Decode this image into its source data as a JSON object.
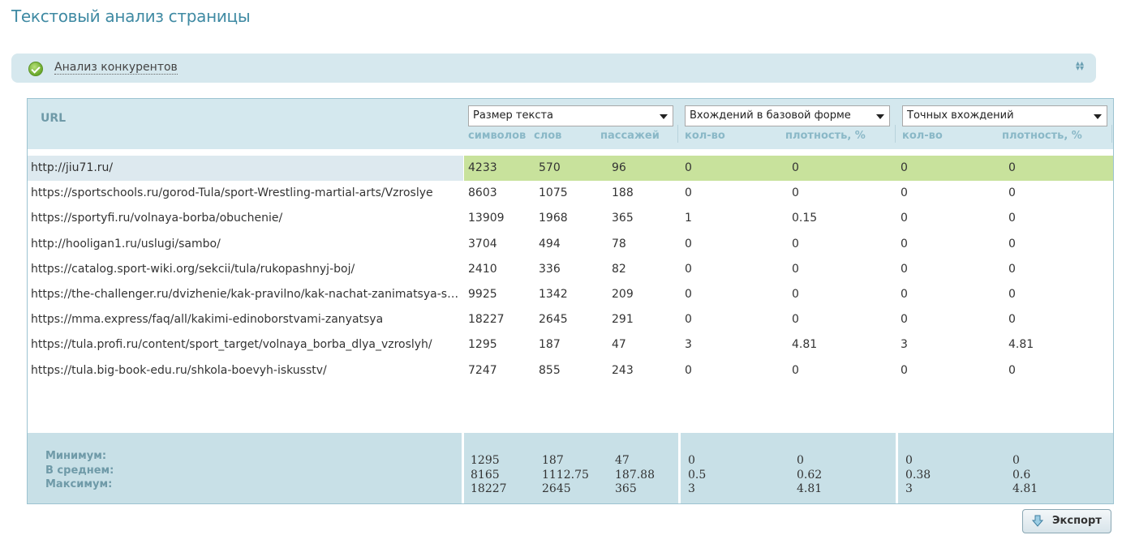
{
  "page": {
    "title": "Текстовый анализ страницы"
  },
  "panel": {
    "label": "Анализ конкурентов"
  },
  "table": {
    "url_header": "URL",
    "groups": [
      {
        "select": "Размер текста",
        "subs": [
          "символов",
          "слов",
          "пассажей"
        ]
      },
      {
        "select": "Вхождений в базовой форме",
        "subs": [
          "кол-во",
          "плотность, %"
        ]
      },
      {
        "select": "Точных вхождений",
        "subs": [
          "кол-во",
          "плотность, %"
        ]
      }
    ],
    "rows": [
      {
        "url": "http://jiu71.ru/",
        "v": [
          "4233",
          "570",
          "96",
          "0",
          "0",
          "0",
          "0"
        ]
      },
      {
        "url": "https://sportschools.ru/gorod-Tula/sport-Wrestling-martial-arts/Vzroslye",
        "v": [
          "8603",
          "1075",
          "188",
          "0",
          "0",
          "0",
          "0"
        ]
      },
      {
        "url": "https://sportyfi.ru/volnaya-borba/obuchenie/",
        "v": [
          "13909",
          "1968",
          "365",
          "1",
          "0.15",
          "0",
          "0"
        ]
      },
      {
        "url": "http://hooligan1.ru/uslugi/sambo/",
        "v": [
          "3704",
          "494",
          "78",
          "0",
          "0",
          "0",
          "0"
        ]
      },
      {
        "url": "https://catalog.sport-wiki.org/sekcii/tula/rukopashnyj-boj/",
        "v": [
          "2410",
          "336",
          "82",
          "0",
          "0",
          "0",
          "0"
        ]
      },
      {
        "url": "https://the-challenger.ru/dvizhenie/kak-pravilno/kak-nachat-zanimatsya-sportivnoj-borboj/",
        "v": [
          "9925",
          "1342",
          "209",
          "0",
          "0",
          "0",
          "0"
        ]
      },
      {
        "url": "https://mma.express/faq/all/kakimi-edinoborstvami-zanyatsya",
        "v": [
          "18227",
          "2645",
          "291",
          "0",
          "0",
          "0",
          "0"
        ]
      },
      {
        "url": "https://tula.profi.ru/content/sport_target/volnaya_borba_dlya_vzroslyh/",
        "v": [
          "1295",
          "187",
          "47",
          "3",
          "4.81",
          "3",
          "4.81"
        ]
      },
      {
        "url": "https://tula.big-book-edu.ru/shkola-boevyh-iskusstv/",
        "v": [
          "7247",
          "855",
          "243",
          "0",
          "0",
          "0",
          "0"
        ]
      }
    ],
    "footer": {
      "labels": [
        "Минимум:",
        "В среднем:",
        "Максимум:"
      ],
      "columns": [
        [
          "1295",
          "8165",
          "18227"
        ],
        [
          "187",
          "1112.75",
          "2645"
        ],
        [
          "47",
          "187.88",
          "365"
        ],
        [
          "0",
          "0.5",
          "3"
        ],
        [
          "0",
          "0.62",
          "4.81"
        ],
        [
          "0",
          "0.38",
          "3"
        ],
        [
          "0",
          "0.6",
          "4.81"
        ]
      ]
    }
  },
  "export_label": "Экспорт"
}
